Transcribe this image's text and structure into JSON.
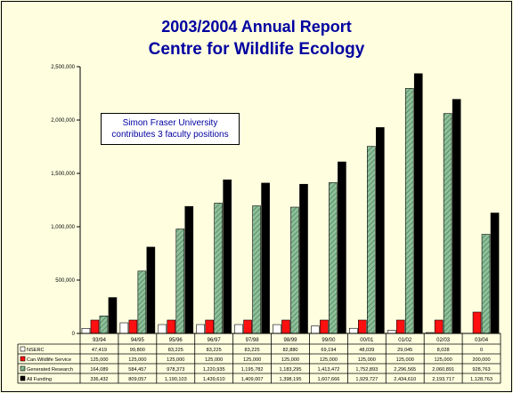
{
  "title": {
    "line1": "2003/2004 Annual Report",
    "line2": "Centre for Wildlife Ecology"
  },
  "annotation": {
    "line1": "Simon Fraser University",
    "line2": "contributes 3 faculty positions"
  },
  "colors": {
    "background": "#ffffe0",
    "title": "#0000a0",
    "nserc": "#ffffff",
    "cws": "#ff1010",
    "generated": "#8fbf9a",
    "all": "#000000"
  },
  "chart_data": {
    "type": "bar",
    "categories": [
      "93/94",
      "94/95",
      "95/96",
      "96/97",
      "97/98",
      "98/99",
      "99/00",
      "00/01",
      "01/02",
      "02/03",
      "03/04"
    ],
    "ylim": [
      0,
      2500000
    ],
    "yticks": [
      0,
      500000,
      1000000,
      1500000,
      2000000,
      2500000
    ],
    "ytick_labels": [
      "0",
      "500,000",
      "1,000,000",
      "1,500,000",
      "2,000,000",
      "2,500,000"
    ],
    "grid": false,
    "legend": "table-below",
    "series": [
      {
        "name": "NSERC",
        "key": "nserc",
        "values": [
          47419,
          99800,
          83225,
          83225,
          83225,
          82880,
          69194,
          48039,
          29045,
          8028,
          0
        ],
        "labels": [
          "47,419",
          "99,800",
          "83,225",
          "83,225",
          "83,225",
          "82,880",
          "69,194",
          "48,039",
          "29,045",
          "8,028",
          "0"
        ]
      },
      {
        "name": "Can.Wildlife Service",
        "key": "cws",
        "values": [
          125000,
          125000,
          125000,
          125000,
          125000,
          125000,
          125000,
          125000,
          125000,
          125000,
          200000
        ],
        "labels": [
          "125,000",
          "125,000",
          "125,000",
          "125,000",
          "125,000",
          "125,000",
          "125,000",
          "125,000",
          "125,000",
          "125,000",
          "200,000"
        ]
      },
      {
        "name": "Generated Research",
        "key": "generated",
        "values": [
          164089,
          584457,
          978373,
          1220935,
          1195782,
          1183295,
          1413472,
          1752893,
          2296565,
          2060891,
          928763
        ],
        "labels": [
          "164,089",
          "584,457",
          "978,373",
          "1,220,935",
          "1,195,782",
          "1,183,295",
          "1,413,472",
          "1,752,893",
          "2,296,565",
          "2,060,891",
          "928,763"
        ]
      },
      {
        "name": "All Funding",
        "key": "all",
        "values": [
          336432,
          809057,
          1190103,
          1439610,
          1409007,
          1398195,
          1607666,
          1929727,
          2434610,
          2193717,
          1128763
        ],
        "labels": [
          "336,432",
          "809,057",
          "1,190,103",
          "1,439,610",
          "1,409,007",
          "1,398,195",
          "1,607,666",
          "1,929,727",
          "2,434,610",
          "2,193,717",
          "1,128,763"
        ]
      }
    ]
  }
}
